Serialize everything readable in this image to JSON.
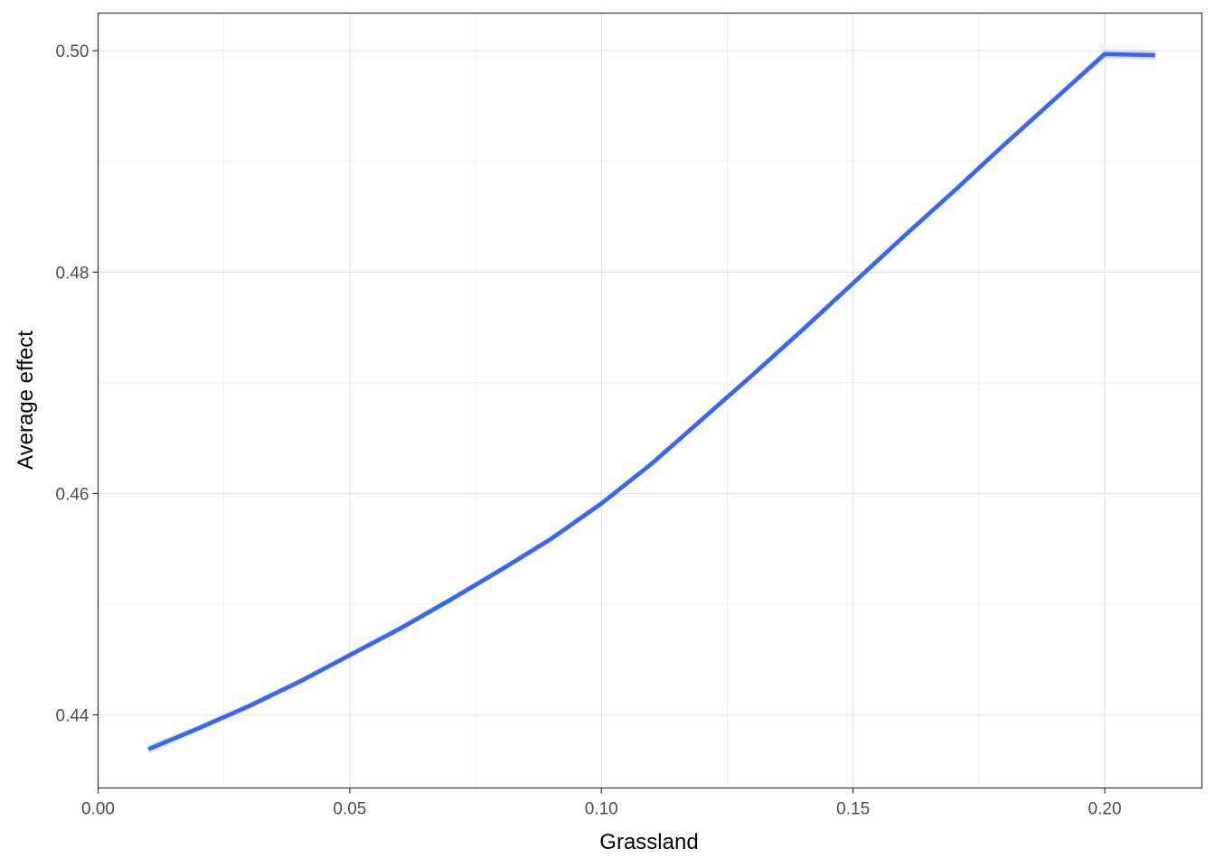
{
  "chart_data": {
    "type": "line",
    "title": "",
    "xlabel": "Grassland",
    "ylabel": "Average effect",
    "xlim": [
      0.0,
      0.2193
    ],
    "ylim": [
      0.4334,
      0.5034
    ],
    "grid": true,
    "legend": "none",
    "x_ticks": [
      0.0,
      0.05,
      0.1,
      0.15,
      0.2
    ],
    "x_tick_labels": [
      "0.00",
      "0.05",
      "0.10",
      "0.15",
      "0.20"
    ],
    "y_ticks": [
      0.44,
      0.46,
      0.48,
      0.5
    ],
    "y_tick_labels": [
      "0.44",
      "0.46",
      "0.48",
      "0.50"
    ],
    "series": [
      {
        "color": "#3366ff",
        "ribbon_color": "#c8c8c8",
        "x": [
          0.01,
          0.02,
          0.03,
          0.04,
          0.05,
          0.06,
          0.07,
          0.08,
          0.09,
          0.1,
          0.11,
          0.12,
          0.13,
          0.14,
          0.15,
          0.16,
          0.17,
          0.18,
          0.19,
          0.2,
          0.21
        ],
        "y": [
          0.4369,
          0.4388,
          0.4408,
          0.443,
          0.4454,
          0.4478,
          0.4504,
          0.4531,
          0.4559,
          0.4591,
          0.4627,
          0.4667,
          0.4707,
          0.4748,
          0.479,
          0.4832,
          0.4873,
          0.4915,
          0.4956,
          0.4997,
          0.4996
        ],
        "lower": [
          0.4365,
          0.4385,
          0.4405,
          0.4427,
          0.4451,
          0.4475,
          0.4501,
          0.4528,
          0.4556,
          0.4588,
          0.4624,
          0.4664,
          0.4704,
          0.4745,
          0.4787,
          0.4829,
          0.487,
          0.4912,
          0.4953,
          0.4993,
          0.4992
        ],
        "upper": [
          0.4373,
          0.4391,
          0.4411,
          0.4433,
          0.4457,
          0.4481,
          0.4507,
          0.4534,
          0.4562,
          0.4594,
          0.463,
          0.467,
          0.471,
          0.4751,
          0.4793,
          0.4835,
          0.4876,
          0.4918,
          0.4959,
          0.5001,
          0.5
        ]
      }
    ]
  }
}
